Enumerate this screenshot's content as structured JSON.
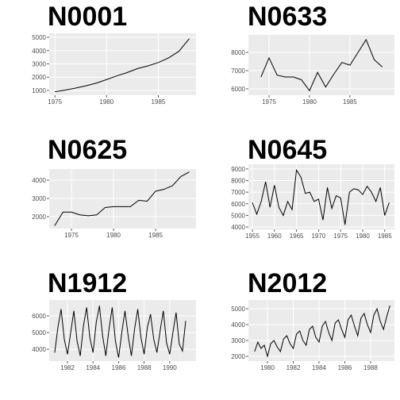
{
  "chart_data": [
    {
      "type": "line",
      "title": "N0001",
      "color": "#000000",
      "x": [
        1975,
        1976,
        1977,
        1978,
        1979,
        1980,
        1981,
        1982,
        1983,
        1984,
        1985,
        1986,
        1987,
        1988
      ],
      "values": [
        900,
        1030,
        1180,
        1350,
        1550,
        1820,
        2100,
        2350,
        2650,
        2850,
        3100,
        3450,
        3950,
        4900
      ],
      "xlim": [
        1974.45,
        1988.65
      ],
      "ylim": [
        640,
        5300
      ],
      "xticks": [
        1975,
        1980,
        1985
      ],
      "yticks": [
        1000,
        2000,
        3000,
        4000,
        5000
      ]
    },
    {
      "type": "line",
      "title": "N0633",
      "color": "#000000",
      "x": [
        1974,
        1975,
        1976,
        1977,
        1978,
        1979,
        1980,
        1981,
        1982,
        1983,
        1984,
        1985,
        1986,
        1987,
        1988,
        1989
      ],
      "values": [
        6650,
        7700,
        6750,
        6650,
        6650,
        6500,
        5900,
        6900,
        6100,
        6800,
        7450,
        7300,
        8000,
        8700,
        7600,
        7200
      ],
      "xlim": [
        1972.45,
        1990.5
      ],
      "ylim": [
        5650,
        8960
      ],
      "xticks": [
        1975,
        1980,
        1985
      ],
      "yticks": [
        6000,
        7000,
        8000
      ]
    },
    {
      "type": "line",
      "title": "N0625",
      "color": "#000000",
      "x": [
        1973,
        1974,
        1975,
        1976,
        1977,
        1978,
        1979,
        1980,
        1981,
        1982,
        1983,
        1984,
        1985,
        1986,
        1987,
        1988,
        1989
      ],
      "values": [
        1500,
        2250,
        2250,
        2100,
        2050,
        2100,
        2500,
        2550,
        2550,
        2550,
        2900,
        2850,
        3400,
        3500,
        3700,
        4200,
        4450
      ],
      "xlim": [
        1972.36,
        1989.8
      ],
      "ylim": [
        1350,
        4610
      ],
      "xticks": [
        1975,
        1980,
        1985
      ],
      "yticks": [
        2000,
        3000,
        4000
      ]
    },
    {
      "type": "line",
      "title": "N0645",
      "color": "#000000",
      "x": [
        1955,
        1956,
        1957,
        1958,
        1959,
        1960,
        1961,
        1962,
        1963,
        1964,
        1965,
        1966,
        1967,
        1968,
        1969,
        1970,
        1971,
        1972,
        1973,
        1974,
        1975,
        1976,
        1977,
        1978,
        1979,
        1980,
        1981,
        1982,
        1983,
        1984,
        1985,
        1986
      ],
      "values": [
        6100,
        5100,
        6200,
        7900,
        5700,
        7600,
        5700,
        5000,
        6200,
        5500,
        8900,
        8300,
        6900,
        7000,
        6200,
        6400,
        4600,
        7400,
        5600,
        6700,
        6500,
        4200,
        7000,
        7300,
        7200,
        6800,
        7500,
        7000,
        6200,
        7400,
        5000,
        6100
      ],
      "xlim": [
        1954.1,
        1987.2
      ],
      "ylim": [
        3800,
        9400
      ],
      "xticks": [
        1955,
        1960,
        1965,
        1970,
        1975,
        1980,
        1985
      ],
      "yticks": [
        4000,
        5000,
        6000,
        7000,
        8000,
        9000
      ]
    },
    {
      "type": "line",
      "title": "N1912",
      "color": "#000000",
      "x": [
        1981,
        1981.25,
        1981.5,
        1981.75,
        1982,
        1982.25,
        1982.5,
        1982.75,
        1983,
        1983.25,
        1983.5,
        1983.75,
        1984,
        1984.25,
        1984.5,
        1984.75,
        1985,
        1985.25,
        1985.5,
        1985.75,
        1986,
        1986.25,
        1986.5,
        1986.75,
        1987,
        1987.25,
        1987.5,
        1987.75,
        1988,
        1988.25,
        1988.5,
        1988.75,
        1989,
        1989.25,
        1989.5,
        1989.75,
        1990,
        1990.25,
        1990.5,
        1990.75,
        1991,
        1991.25
      ],
      "values": [
        3800,
        5300,
        6400,
        4600,
        3700,
        5000,
        6300,
        4500,
        3600,
        5400,
        6500,
        4700,
        3800,
        5600,
        6600,
        4800,
        3600,
        5200,
        6500,
        4500,
        3500,
        5000,
        6300,
        4800,
        3600,
        5200,
        6400,
        4700,
        3700,
        5300,
        6100,
        4600,
        3800,
        5100,
        6300,
        4400,
        3700,
        5000,
        6200,
        4300,
        3900,
        5700
      ],
      "xlim": [
        1980.57,
        1992.06
      ],
      "ylim": [
        3290,
        6950
      ],
      "xticks": [
        1982,
        1984,
        1986,
        1988,
        1990
      ],
      "yticks": [
        4000,
        5000,
        6000
      ]
    },
    {
      "type": "line",
      "title": "N2012",
      "color": "#000000",
      "x": [
        1979,
        1979.25,
        1979.5,
        1979.75,
        1980,
        1980.25,
        1980.5,
        1980.75,
        1981,
        1981.25,
        1981.5,
        1981.75,
        1982,
        1982.25,
        1982.5,
        1982.75,
        1983,
        1983.25,
        1983.5,
        1983.75,
        1984,
        1984.25,
        1984.5,
        1984.75,
        1985,
        1985.25,
        1985.5,
        1985.75,
        1986,
        1986.25,
        1986.5,
        1986.75,
        1987,
        1987.25,
        1987.5,
        1987.75,
        1988,
        1988.25,
        1988.5,
        1988.75,
        1989,
        1989.25,
        1989.5
      ],
      "values": [
        2300,
        2900,
        2500,
        2700,
        2000,
        2800,
        3000,
        2600,
        2300,
        3100,
        3300,
        2800,
        2500,
        3400,
        3600,
        3000,
        2700,
        3700,
        3900,
        3200,
        2900,
        3900,
        4200,
        3500,
        3000,
        4100,
        4300,
        3700,
        3200,
        4300,
        4600,
        3900,
        3300,
        4400,
        4700,
        4000,
        3500,
        4600,
        5000,
        4200,
        3700,
        4500,
        5200
      ],
      "xlim": [
        1978.52,
        1989.85
      ],
      "ylim": [
        1700,
        5550
      ],
      "xticks": [
        1980,
        1982,
        1984,
        1986,
        1988
      ],
      "yticks": [
        2000,
        3000,
        4000,
        5000
      ]
    }
  ]
}
